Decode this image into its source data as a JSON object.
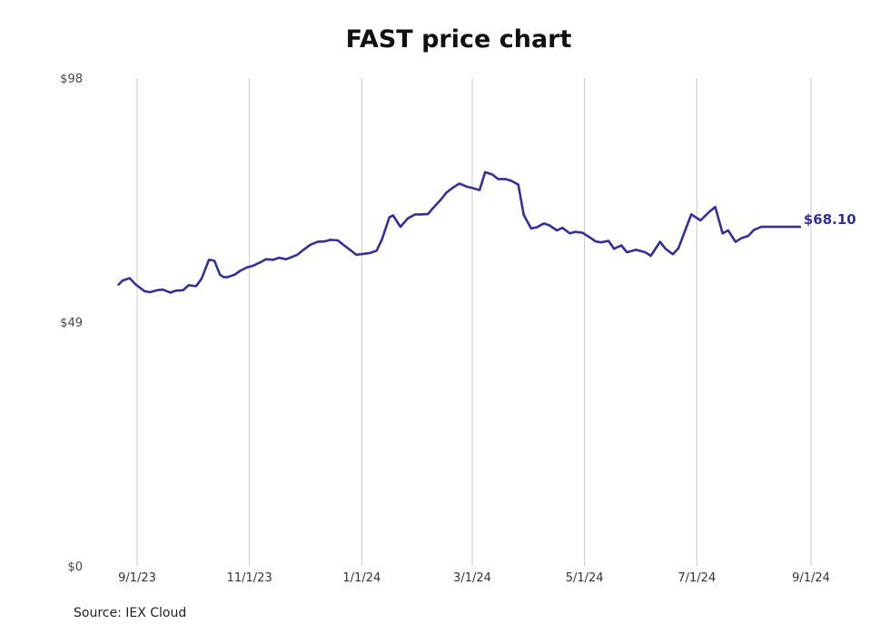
{
  "title": "FAST price chart",
  "source": "Source: IEX Cloud",
  "colors": {
    "line": "#33309a",
    "grid": "#c8c8c8",
    "text": "#111111"
  },
  "chart_data": {
    "type": "line",
    "title": "FAST price chart",
    "xlabel": "",
    "ylabel": "",
    "ylim": [
      0,
      98
    ],
    "xlim": [
      "2023-08-17",
      "2024-09-05"
    ],
    "y_ticks": [
      {
        "value": 0,
        "label": "$0"
      },
      {
        "value": 49,
        "label": "$49"
      },
      {
        "value": 98,
        "label": "$98"
      }
    ],
    "x_ticks": [
      {
        "date": "2023-09-01",
        "label": "9/1/23"
      },
      {
        "date": "2023-11-01",
        "label": "11/1/23"
      },
      {
        "date": "2024-01-01",
        "label": "1/1/24"
      },
      {
        "date": "2024-03-01",
        "label": "3/1/24"
      },
      {
        "date": "2024-05-01",
        "label": "5/1/24"
      },
      {
        "date": "2024-07-01",
        "label": "7/1/24"
      },
      {
        "date": "2024-09-01",
        "label": "9/1/24"
      }
    ],
    "grid": "vertical",
    "last_value_label": "$68.10",
    "series": [
      {
        "x": [
          "2023-08-22",
          "2023-08-24",
          "2023-08-28",
          "2023-08-31",
          "2023-09-05",
          "2023-09-08",
          "2023-09-12",
          "2023-09-15",
          "2023-09-19",
          "2023-09-22",
          "2023-09-26",
          "2023-09-29",
          "2023-10-03",
          "2023-10-06",
          "2023-10-10",
          "2023-10-13",
          "2023-10-16",
          "2023-10-18",
          "2023-10-20",
          "2023-10-24",
          "2023-10-27",
          "2023-10-31",
          "2023-11-03",
          "2023-11-07",
          "2023-11-10",
          "2023-11-14",
          "2023-11-17",
          "2023-11-21",
          "2023-11-27",
          "2023-11-30",
          "2023-12-04",
          "2023-12-08",
          "2023-12-12",
          "2023-12-15",
          "2023-12-19",
          "2023-12-22",
          "2023-12-27",
          "2023-12-29",
          "2024-01-02",
          "2024-01-05",
          "2024-01-09",
          "2024-01-12",
          "2024-01-16",
          "2024-01-18",
          "2024-01-22",
          "2024-01-26",
          "2024-01-30",
          "2024-02-02",
          "2024-02-06",
          "2024-02-09",
          "2024-02-13",
          "2024-02-16",
          "2024-02-20",
          "2024-02-23",
          "2024-02-27",
          "2024-03-01",
          "2024-03-05",
          "2024-03-08",
          "2024-03-12",
          "2024-03-15",
          "2024-03-19",
          "2024-03-22",
          "2024-03-26",
          "2024-03-29",
          "2024-04-02",
          "2024-04-05",
          "2024-04-09",
          "2024-04-12",
          "2024-04-16",
          "2024-04-19",
          "2024-04-23",
          "2024-04-26",
          "2024-04-30",
          "2024-05-03",
          "2024-05-07",
          "2024-05-10",
          "2024-05-14",
          "2024-05-17",
          "2024-05-21",
          "2024-05-24",
          "2024-05-29",
          "2024-06-03",
          "2024-06-06",
          "2024-06-11",
          "2024-06-14",
          "2024-06-18",
          "2024-06-21",
          "2024-06-25",
          "2024-06-28",
          "2024-07-03",
          "2024-07-08",
          "2024-07-11",
          "2024-07-15",
          "2024-07-18",
          "2024-07-22",
          "2024-07-25",
          "2024-07-29",
          "2024-08-01",
          "2024-08-05",
          "2024-08-08",
          "2024-08-12",
          "2024-08-15",
          "2024-08-19",
          "2024-08-22",
          "2024-08-26"
        ],
        "values": [
          56.5,
          57.3,
          57.8,
          56.6,
          55.2,
          55.0,
          55.4,
          55.5,
          54.9,
          55.3,
          55.4,
          56.4,
          56.2,
          57.7,
          61.5,
          61.3,
          58.5,
          58.0,
          58.0,
          58.5,
          59.3,
          60.0,
          60.3,
          61.0,
          61.6,
          61.5,
          61.9,
          61.6,
          62.5,
          63.4,
          64.5,
          65.1,
          65.2,
          65.5,
          65.4,
          64.5,
          63.1,
          62.5,
          62.7,
          62.8,
          63.3,
          65.6,
          70.0,
          70.4,
          68.1,
          69.8,
          70.6,
          70.6,
          70.7,
          72.0,
          73.6,
          75.0,
          76.1,
          76.8,
          76.2,
          75.9,
          75.5,
          79.1,
          78.6,
          77.7,
          77.7,
          77.4,
          76.6,
          70.5,
          67.8,
          68.0,
          68.8,
          68.4,
          67.4,
          67.9,
          66.8,
          67.1,
          66.9,
          66.2,
          65.2,
          65.0,
          65.3,
          63.7,
          64.4,
          63.0,
          63.5,
          63.0,
          62.3,
          65.1,
          63.7,
          62.6,
          63.8,
          67.7,
          70.6,
          69.4,
          71.2,
          72.1,
          66.8,
          67.4,
          65.1,
          65.8,
          66.3,
          67.5,
          68.1,
          68.1,
          68.1,
          68.1,
          68.1,
          68.1,
          68.1
        ]
      }
    ]
  }
}
